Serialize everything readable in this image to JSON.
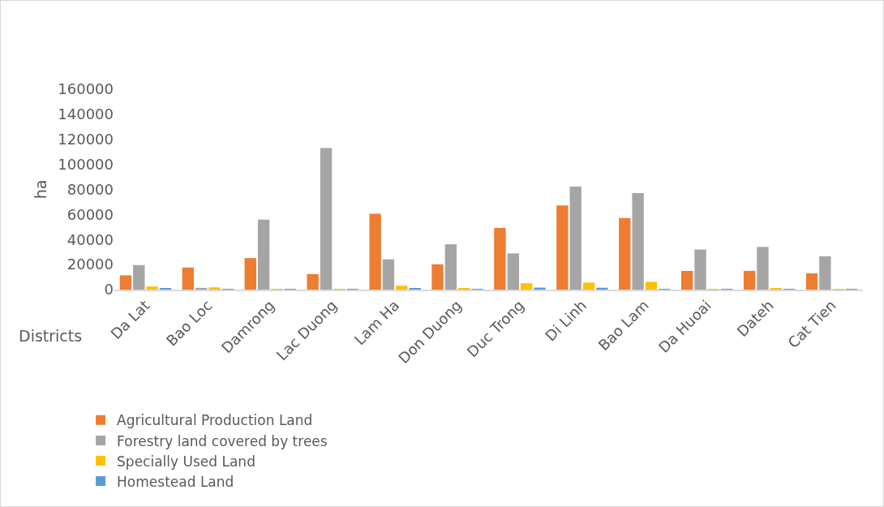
{
  "chart_data": {
    "type": "bar",
    "xlabel": "Districts",
    "ylabel": "ha",
    "categories": [
      "Da Lat",
      "Bao Loc",
      "Damrong",
      "Lac Duong",
      "Lam Ha",
      "Don Duong",
      "Duc Trong",
      "Di Linh",
      "Bao Lam",
      "Da Huoai",
      "Dateh",
      "Cat Tien"
    ],
    "series": [
      {
        "name": "Agricultural Production Land",
        "color": "#ed7d31",
        "values": [
          11400,
          17600,
          25200,
          12400,
          60500,
          20200,
          49200,
          67200,
          57200,
          14900,
          15000,
          13000
        ]
      },
      {
        "name": "Forestry land covered by trees",
        "color": "#a5a5a5",
        "values": [
          19600,
          1400,
          55800,
          113000,
          24200,
          36200,
          28900,
          82200,
          77100,
          32000,
          34100,
          26600
        ]
      },
      {
        "name": "Specially Used Land",
        "color": "#ffc000",
        "values": [
          2500,
          1800,
          500,
          300,
          3100,
          1200,
          5100,
          5600,
          6200,
          400,
          1000,
          400
        ]
      },
      {
        "name": "Homestead Land",
        "color": "#5b9bd5",
        "values": [
          1000,
          500,
          500,
          100,
          1200,
          600,
          1600,
          1500,
          600,
          100,
          100,
          100
        ]
      }
    ],
    "ylim": [
      0,
      160000
    ],
    "yticks": [
      0,
      20000,
      40000,
      60000,
      80000,
      100000,
      120000,
      140000,
      160000
    ],
    "grid": false,
    "legend": "bottom"
  }
}
